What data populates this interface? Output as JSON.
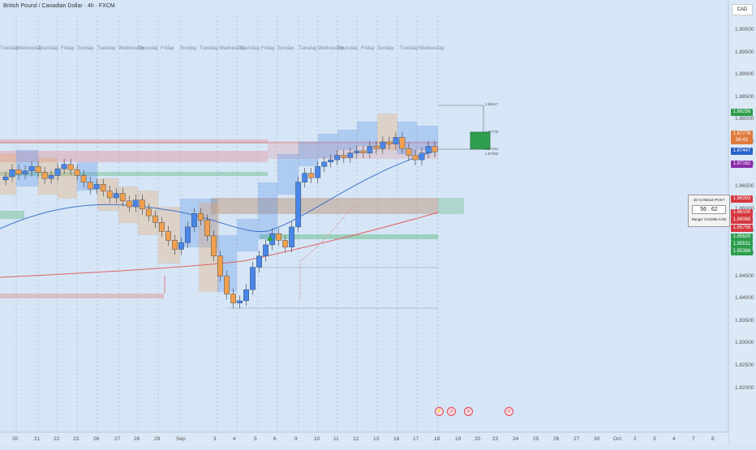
{
  "header": {
    "title": "British Pound / Canadian Dollar · 4h · FXCM"
  },
  "currency_button": {
    "label": "CAD"
  },
  "price_axis": {
    "ticks": [
      "1.90000",
      "1.89500",
      "1.89000",
      "1.88500",
      "1.88000",
      "1.87500",
      "1.87000",
      "1.86500",
      "1.86000",
      "1.85500",
      "1.85000",
      "1.84500",
      "1.84000",
      "1.83500",
      "1.83000",
      "1.82500",
      "1.82000"
    ]
  },
  "price_badges": [
    {
      "label": "1.88256",
      "color": "#2e9e4e"
    },
    {
      "label": "1.87776",
      "color": "#e07a3c"
    },
    {
      "label": "56:43",
      "color": "#e07a3c"
    },
    {
      "label": "1.87447",
      "color": "#2962c7"
    },
    {
      "label": "1.87162",
      "color": "#8a2aa8"
    },
    {
      "label": "1.86393",
      "color": "#d6373f"
    },
    {
      "label": "1.86100",
      "color": "#d6373f"
    },
    {
      "label": "1.86066",
      "color": "#d6373f"
    },
    {
      "label": "1.85756",
      "color": "#d6373f"
    },
    {
      "label": "1.85620",
      "color": "#2e9e4e"
    },
    {
      "label": "1.85511",
      "color": "#2e9e4e"
    },
    {
      "label": "1.85386",
      "color": "#2e9e4e"
    }
  ],
  "time_axis": {
    "ticks": [
      "20",
      "21",
      "22",
      "23",
      "26",
      "27",
      "28",
      "29",
      "Sep",
      "3",
      "4",
      "5",
      "6",
      "9",
      "10",
      "11",
      "12",
      "13",
      "16",
      "17",
      "18",
      "19",
      "20",
      "23",
      "24",
      "25",
      "26",
      "27",
      "30",
      "Oct",
      "2",
      "3",
      "4",
      "7",
      "8"
    ]
  },
  "day_labels": [
    "Tuesday",
    "Wednesday",
    "Thursday",
    "Friday",
    "Sunday",
    "Tuesday",
    "Wednesday",
    "Thursday",
    "Friday",
    "Sunday",
    "Tuesday",
    "Wednesday",
    "Thursday",
    "Friday",
    "Sunday",
    "Tuesday",
    "Wednesday",
    "Thursday",
    "Friday",
    "Sunday",
    "Tuesday",
    "Wednesday"
  ],
  "candle_panel": {
    "title": "1D CANDLE POS?",
    "timer": "56 : 62",
    "range": "Range: 0.01065 CAD"
  },
  "mini_labels": [
    "1.88417",
    "1.87776",
    "1.87441",
    "1.87352"
  ],
  "event_flags": [
    "⚡",
    "◎",
    "◎",
    "◎"
  ],
  "colors": {
    "background": "#d6e6f7",
    "up_candle": "#26a69a",
    "down_candle": "#ef5350",
    "blue_zone": "#4a86e8",
    "orange_zone": "#f0a050",
    "green_zone": "#34a853",
    "red_zone": "#e57373",
    "ma_blue": "#3d72c8",
    "ma_red": "#e06060"
  }
}
